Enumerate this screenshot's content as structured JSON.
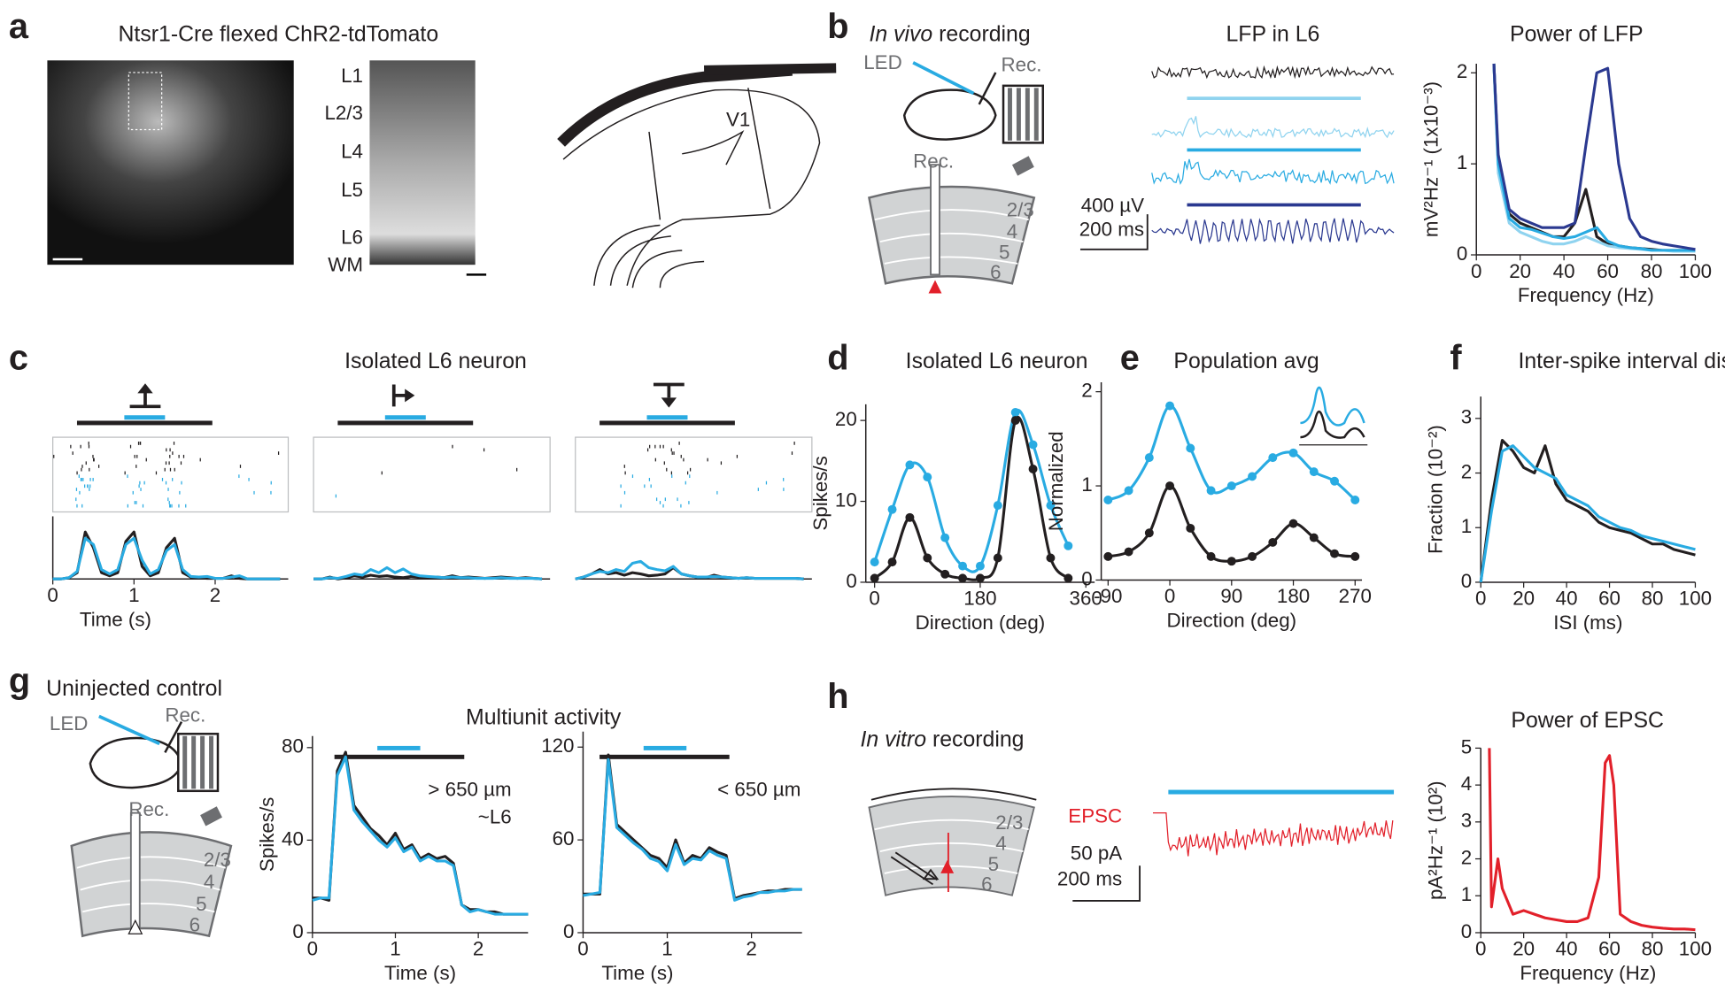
{
  "panel_labels": [
    "a",
    "b",
    "c",
    "d",
    "e",
    "f",
    "g",
    "h"
  ],
  "texts": {
    "a_title": "Ntsr1-Cre flexed ChR2-tdTomato",
    "layers": [
      "L1",
      "L2/3",
      "L4",
      "L5",
      "L6",
      "WM"
    ],
    "v1": "V1",
    "b_title_italic": "In vivo",
    "b_title_rest": " recording",
    "led": "LED",
    "rec": "Rec.",
    "depths": [
      "2/3",
      "4",
      "5",
      "6"
    ],
    "lfp_title": "LFP in L6",
    "lfp_scale_v": "400 µV",
    "lfp_scale_t": "200 ms",
    "c_title": "Isolated L6 neuron",
    "g_title": "Uninjected control",
    "mua_title": "Multiunit activity",
    "h_title_italic": "In vitro",
    "h_title_rest": " recording",
    "epsc": "EPSC",
    "epsc_scale_i": "50 pA",
    "epsc_scale_t": "200 ms"
  },
  "chart_data": [
    {
      "type": "line",
      "title": "Power of LFP",
      "xlabel": "Frequency (Hz)",
      "ylabel": "mV²Hz⁻¹ (1x10⁻³)",
      "xlim": [
        0,
        100
      ],
      "ylim": [
        0,
        2.1
      ],
      "xticks": [
        0,
        20,
        40,
        60,
        80,
        100
      ],
      "yticks": [
        0,
        1,
        2
      ],
      "x": [
        8,
        10,
        15,
        20,
        25,
        30,
        35,
        40,
        45,
        50,
        55,
        60,
        65,
        70,
        75,
        80,
        85,
        90,
        95,
        100
      ],
      "series": [
        {
          "color": "#231f20",
          "values": [
            2.1,
            1.0,
            0.45,
            0.35,
            0.3,
            0.25,
            0.2,
            0.2,
            0.35,
            0.72,
            0.2,
            0.12,
            0.1,
            0.08,
            0.07,
            0.06,
            0.05,
            0.05,
            0.05,
            0.05
          ]
        },
        {
          "color": "#8fd3ef",
          "values": [
            2.1,
            0.9,
            0.35,
            0.25,
            0.2,
            0.15,
            0.12,
            0.12,
            0.15,
            0.2,
            0.15,
            0.1,
            0.08,
            0.07,
            0.06,
            0.05,
            0.05,
            0.04,
            0.04,
            0.04
          ]
        },
        {
          "color": "#29abe2",
          "values": [
            2.1,
            1.0,
            0.4,
            0.3,
            0.28,
            0.24,
            0.2,
            0.18,
            0.2,
            0.25,
            0.3,
            0.15,
            0.1,
            0.08,
            0.07,
            0.05,
            0.05,
            0.05,
            0.05,
            0.05
          ]
        },
        {
          "color": "#2b3990",
          "values": [
            2.1,
            1.1,
            0.5,
            0.4,
            0.35,
            0.3,
            0.3,
            0.3,
            0.35,
            1.2,
            2.0,
            2.05,
            1.0,
            0.4,
            0.2,
            0.15,
            0.12,
            0.1,
            0.08,
            0.06
          ]
        }
      ]
    },
    {
      "type": "line",
      "xlabel": "Time (s)",
      "xlim": [
        0,
        2.9
      ],
      "ylim": [
        0,
        10
      ],
      "xticks": [
        0,
        1,
        2
      ],
      "x": [
        0,
        0.1,
        0.2,
        0.3,
        0.4,
        0.5,
        0.6,
        0.7,
        0.8,
        0.9,
        1.0,
        1.1,
        1.2,
        1.3,
        1.4,
        1.5,
        1.6,
        1.7,
        1.8,
        1.9,
        2.0,
        2.1,
        2.2,
        2.3,
        2.4,
        2.5,
        2.6,
        2.7,
        2.8
      ],
      "series": [
        {
          "color": "#231f20",
          "values": [
            0,
            0,
            0.2,
            1,
            7.5,
            5,
            1,
            0.5,
            1,
            6,
            7.5,
            2,
            0.5,
            1,
            5,
            6.5,
            1,
            0.3,
            0.2,
            0.1,
            0.1,
            0.1,
            0.5,
            0.1,
            0,
            0,
            0,
            0,
            0
          ]
        },
        {
          "color": "#29abe2",
          "values": [
            0,
            0,
            0.2,
            1.2,
            6.5,
            5.5,
            1.5,
            0.8,
            1.5,
            5.5,
            6.5,
            3,
            0.8,
            1.5,
            4.5,
            5.5,
            1.5,
            0.4,
            0.3,
            0.4,
            0.1,
            0.1,
            0.3,
            0.5,
            0,
            0,
            0,
            0,
            0
          ]
        }
      ]
    },
    {
      "type": "line",
      "xlim": [
        0,
        2.9
      ],
      "ylim": [
        0,
        10
      ],
      "x": [
        0,
        0.1,
        0.2,
        0.3,
        0.4,
        0.5,
        0.6,
        0.7,
        0.8,
        0.9,
        1.0,
        1.1,
        1.2,
        1.3,
        1.4,
        1.5,
        1.6,
        1.7,
        1.8,
        1.9,
        2.0,
        2.1,
        2.2,
        2.3,
        2.4,
        2.5,
        2.6,
        2.7,
        2.8
      ],
      "series": [
        {
          "color": "#231f20",
          "values": [
            0,
            0,
            0.3,
            0,
            0.2,
            0.5,
            0.3,
            0.6,
            0.4,
            0.5,
            0.3,
            0.2,
            0.4,
            0.3,
            0.2,
            0.3,
            0.2,
            0.5,
            0.2,
            0.3,
            0.2,
            0.1,
            0.2,
            0.3,
            0.2,
            0.1,
            0.2,
            0.1,
            0
          ]
        },
        {
          "color": "#29abe2",
          "values": [
            0,
            0,
            0.2,
            0.1,
            0.4,
            0.8,
            0.6,
            1.5,
            1.0,
            1.8,
            1.0,
            1.6,
            0.8,
            0.5,
            0.4,
            0.3,
            0.2,
            0.3,
            0.2,
            0.2,
            0.1,
            0.1,
            0.1,
            0.2,
            0.1,
            0.1,
            0.1,
            0.1,
            0
          ]
        }
      ]
    },
    {
      "type": "line",
      "xlim": [
        0,
        2.9
      ],
      "ylim": [
        0,
        10
      ],
      "x": [
        0,
        0.1,
        0.2,
        0.3,
        0.4,
        0.5,
        0.6,
        0.7,
        0.8,
        0.9,
        1.0,
        1.1,
        1.2,
        1.3,
        1.4,
        1.5,
        1.6,
        1.7,
        1.8,
        1.9,
        2.0,
        2.1,
        2.2,
        2.3,
        2.4,
        2.5,
        2.6,
        2.7,
        2.8
      ],
      "series": [
        {
          "color": "#231f20",
          "values": [
            0,
            0.3,
            0.8,
            1.5,
            0.8,
            1.0,
            0.6,
            1.0,
            0.8,
            0.5,
            0.6,
            0.8,
            1.8,
            0.8,
            0.5,
            0.3,
            0.2,
            0.6,
            0.3,
            0.2,
            0.1,
            0.2,
            0.1,
            0.1,
            0.1,
            0.1,
            0.1,
            0.1,
            0
          ]
        },
        {
          "color": "#29abe2",
          "values": [
            0,
            0.3,
            0.8,
            1.2,
            1.0,
            1.5,
            1.2,
            2.5,
            2.8,
            1.8,
            1.5,
            1.3,
            2.0,
            0.8,
            0.5,
            0.3,
            0.3,
            0.4,
            0.3,
            0.2,
            0.1,
            0.2,
            0.1,
            0.1,
            0.1,
            0.1,
            0.1,
            0.1,
            0
          ]
        }
      ]
    },
    {
      "type": "line",
      "title": "Isolated L6 neuron",
      "xlabel": "Direction (deg)",
      "ylabel": "Spikes/s",
      "xlim": [
        -15,
        375
      ],
      "ylim": [
        0,
        22
      ],
      "xticks": [
        0,
        180,
        360
      ],
      "yticks": [
        0,
        10,
        20
      ],
      "x": [
        0,
        30,
        60,
        90,
        120,
        150,
        180,
        210,
        240,
        270,
        300,
        330
      ],
      "series": [
        {
          "color": "#29abe2",
          "style": "points",
          "values": [
            2.5,
            9,
            14.5,
            13,
            5.5,
            2,
            2,
            9.5,
            21,
            17,
            9.5,
            4.5
          ]
        },
        {
          "color": "#231f20",
          "style": "points",
          "values": [
            0.5,
            2.5,
            8,
            3,
            1,
            0.5,
            0.5,
            3,
            20,
            14,
            3,
            0.5
          ]
        }
      ]
    },
    {
      "type": "line",
      "title": "Population avg",
      "xlabel": "Direction (deg)",
      "ylabel": "Normalized",
      "xlim": [
        -100,
        280
      ],
      "ylim": [
        0,
        2.1
      ],
      "xticks": [
        -90,
        0,
        90,
        180,
        270
      ],
      "yticks": [
        0,
        1,
        2
      ],
      "x": [
        -90,
        -60,
        -30,
        0,
        30,
        60,
        90,
        120,
        150,
        180,
        210,
        240,
        270
      ],
      "series": [
        {
          "color": "#29abe2",
          "style": "points",
          "values": [
            0.85,
            0.95,
            1.3,
            1.85,
            1.4,
            0.95,
            1.0,
            1.1,
            1.3,
            1.35,
            1.15,
            1.05,
            0.85
          ]
        },
        {
          "color": "#231f20",
          "style": "points",
          "values": [
            0.25,
            0.3,
            0.5,
            1.0,
            0.55,
            0.25,
            0.2,
            0.25,
            0.4,
            0.6,
            0.45,
            0.28,
            0.25
          ]
        }
      ]
    },
    {
      "type": "line",
      "title": "Inter-spike interval dist.",
      "xlabel": "ISI (ms)",
      "ylabel": "Fraction (10⁻²)",
      "xlim": [
        0,
        100
      ],
      "ylim": [
        0,
        3.4
      ],
      "xticks": [
        0,
        20,
        40,
        60,
        80,
        100
      ],
      "yticks": [
        0,
        1,
        2,
        3
      ],
      "x": [
        0,
        5,
        10,
        15,
        20,
        25,
        30,
        35,
        40,
        45,
        50,
        55,
        60,
        65,
        70,
        75,
        80,
        85,
        90,
        95,
        100
      ],
      "series": [
        {
          "color": "#231f20",
          "values": [
            0,
            1.5,
            2.6,
            2.4,
            2.1,
            2.0,
            2.5,
            1.8,
            1.5,
            1.4,
            1.3,
            1.1,
            1.0,
            0.95,
            0.9,
            0.8,
            0.7,
            0.7,
            0.6,
            0.55,
            0.5
          ]
        },
        {
          "color": "#29abe2",
          "values": [
            0,
            1.3,
            2.4,
            2.5,
            2.3,
            2.1,
            2.0,
            1.9,
            1.6,
            1.5,
            1.4,
            1.2,
            1.1,
            1.0,
            0.95,
            0.85,
            0.8,
            0.75,
            0.7,
            0.65,
            0.6
          ]
        }
      ]
    },
    {
      "type": "line",
      "xlabel": "Time (s)",
      "ylabel": "Spikes/s",
      "xlim": [
        0,
        2.6
      ],
      "ylim": [
        0,
        85
      ],
      "xticks": [
        0,
        1,
        2
      ],
      "yticks": [
        0,
        40,
        80
      ],
      "annotations": [
        "> 650 µm",
        "~L6"
      ],
      "x": [
        0,
        0.1,
        0.2,
        0.3,
        0.4,
        0.5,
        0.6,
        0.7,
        0.8,
        0.9,
        1.0,
        1.1,
        1.2,
        1.3,
        1.4,
        1.5,
        1.6,
        1.7,
        1.8,
        1.9,
        2.0,
        2.1,
        2.2,
        2.3,
        2.4,
        2.5,
        2.6
      ],
      "series": [
        {
          "color": "#231f20",
          "values": [
            15,
            15,
            14,
            70,
            78,
            55,
            50,
            45,
            42,
            38,
            43,
            36,
            38,
            32,
            34,
            32,
            33,
            30,
            12,
            10,
            10,
            9,
            9,
            8,
            8,
            8,
            8
          ]
        },
        {
          "color": "#29abe2",
          "values": [
            14,
            15,
            15,
            68,
            76,
            53,
            48,
            44,
            40,
            37,
            41,
            35,
            37,
            31,
            33,
            31,
            31,
            29,
            12,
            9,
            10,
            9,
            8,
            8,
            8,
            8,
            8
          ]
        }
      ]
    },
    {
      "type": "line",
      "xlabel": "Time (s)",
      "xlim": [
        0,
        2.6
      ],
      "ylim": [
        0,
        130
      ],
      "xticks": [
        0,
        1,
        2
      ],
      "yticks": [
        0,
        60,
        120
      ],
      "annotations": [
        "< 650 µm"
      ],
      "x": [
        0,
        0.1,
        0.2,
        0.3,
        0.4,
        0.5,
        0.6,
        0.7,
        0.8,
        0.9,
        1.0,
        1.1,
        1.2,
        1.3,
        1.4,
        1.5,
        1.6,
        1.7,
        1.8,
        1.9,
        2.0,
        2.1,
        2.2,
        2.3,
        2.4,
        2.5,
        2.6
      ],
      "series": [
        {
          "color": "#231f20",
          "values": [
            25,
            25,
            25,
            115,
            70,
            65,
            60,
            55,
            50,
            48,
            42,
            60,
            45,
            50,
            48,
            55,
            52,
            50,
            22,
            24,
            25,
            26,
            27,
            27,
            28,
            28,
            28
          ]
        },
        {
          "color": "#29abe2",
          "values": [
            24,
            25,
            26,
            112,
            68,
            63,
            58,
            54,
            48,
            46,
            40,
            57,
            44,
            48,
            47,
            53,
            50,
            48,
            21,
            23,
            24,
            26,
            26,
            27,
            27,
            28,
            28
          ]
        }
      ]
    },
    {
      "type": "line",
      "title": "Power of EPSC",
      "xlabel": "Frequency (Hz)",
      "ylabel": "pA²Hz⁻¹ (10²)",
      "xlim": [
        0,
        100
      ],
      "ylim": [
        0,
        5
      ],
      "xticks": [
        0,
        20,
        40,
        60,
        80,
        100
      ],
      "yticks": [
        0,
        1,
        2,
        3,
        4,
        5
      ],
      "x": [
        4,
        5,
        8,
        10,
        15,
        20,
        25,
        30,
        35,
        40,
        45,
        50,
        55,
        58,
        60,
        62,
        65,
        70,
        75,
        80,
        85,
        90,
        95,
        100
      ],
      "series": [
        {
          "color": "#e2202a",
          "values": [
            5,
            0.7,
            2,
            1.2,
            0.5,
            0.6,
            0.5,
            0.4,
            0.35,
            0.3,
            0.3,
            0.4,
            1.5,
            4.6,
            4.8,
            4.0,
            0.5,
            0.3,
            0.2,
            0.15,
            0.12,
            0.1,
            0.1,
            0.08
          ]
        }
      ]
    }
  ]
}
